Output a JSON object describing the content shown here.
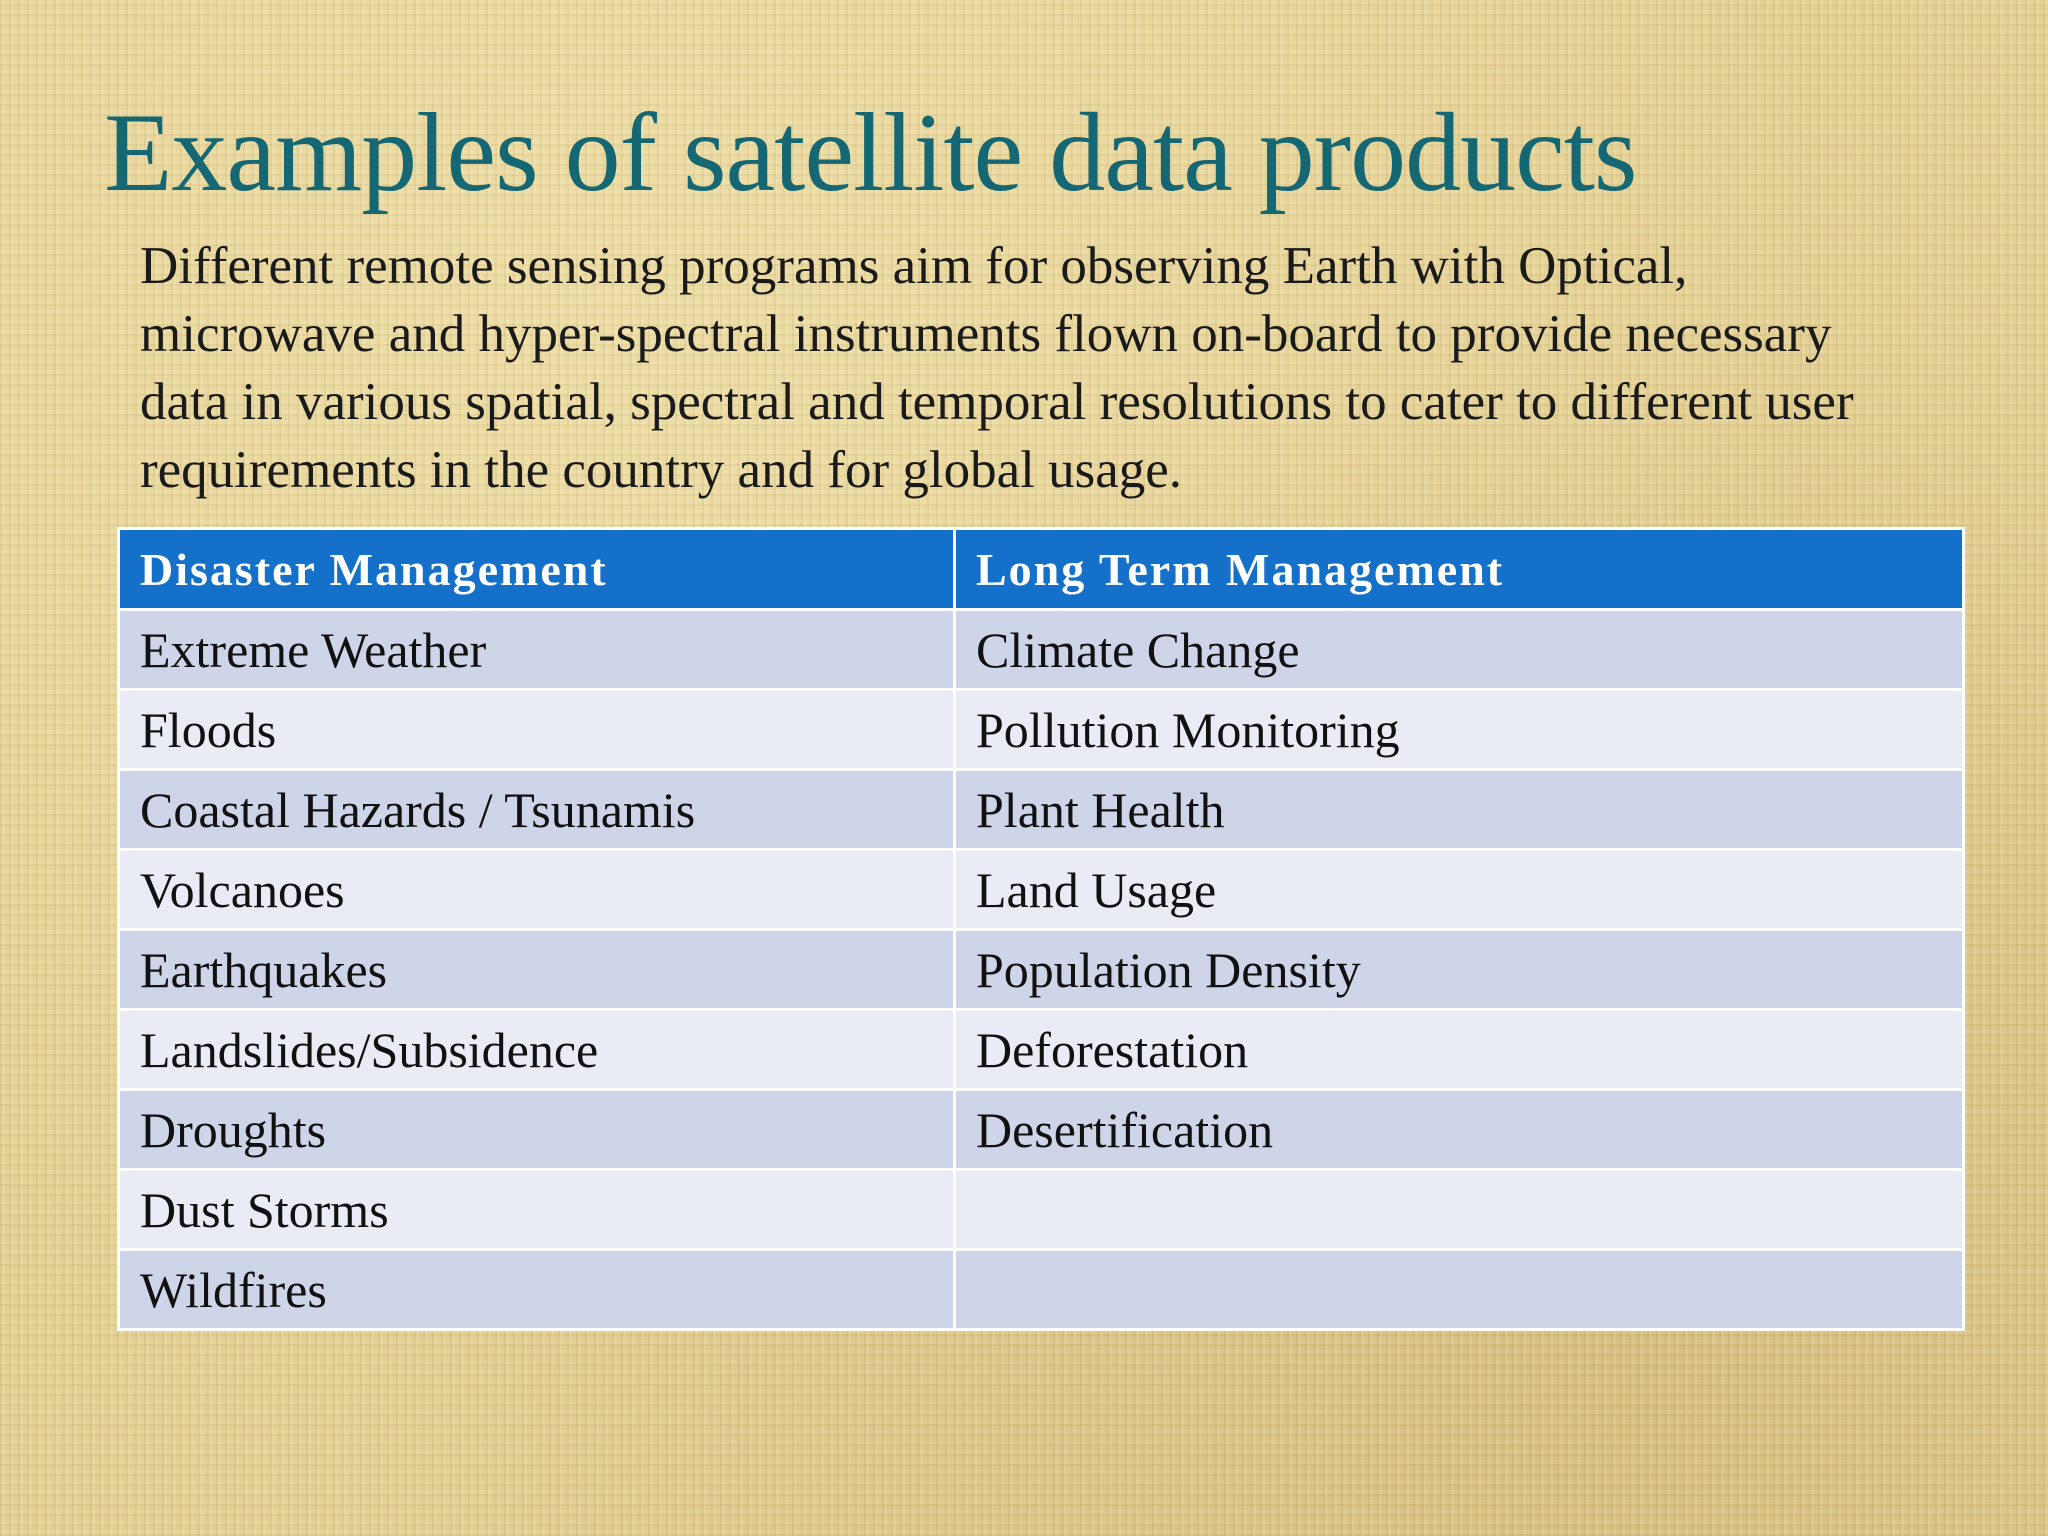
{
  "slide": {
    "title": "Examples of satellite data products",
    "body": "Different remote sensing programs aim for observing Earth with Optical, microwave and hyper-spectral instruments flown on-board to provide necessary data in various spatial, spectral and temporal resolutions to cater to different user requirements in the country and for global usage."
  },
  "table": {
    "headers": [
      "Disaster Management",
      "Long Term Management"
    ],
    "rows": [
      [
        "Extreme Weather",
        "Climate Change"
      ],
      [
        "Floods",
        "Pollution Monitoring"
      ],
      [
        "Coastal Hazards / Tsunamis",
        "Plant Health"
      ],
      [
        "Volcanoes",
        "Land Usage"
      ],
      [
        "Earthquakes",
        "Population Density"
      ],
      [
        "Landslides/Subsidence",
        "Deforestation"
      ],
      [
        "Droughts",
        "Desertification"
      ],
      [
        "Dust Storms",
        ""
      ],
      [
        "Wildfires",
        ""
      ]
    ]
  },
  "colors": {
    "title": "#156773",
    "header_bg": "#1470c8",
    "row_odd": "#cfd5e9",
    "row_even": "#e9ebf5",
    "background": "#e3cf92"
  }
}
